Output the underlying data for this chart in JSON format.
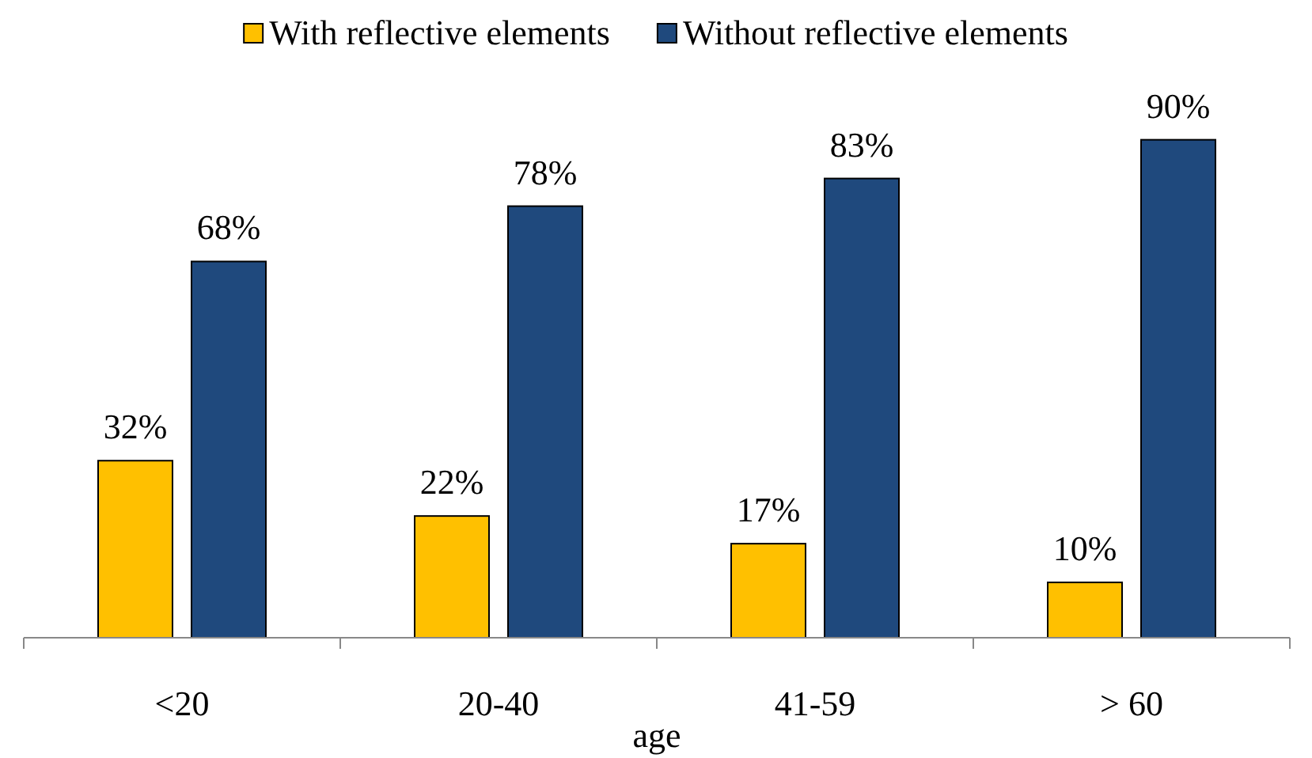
{
  "chart_data": {
    "type": "bar",
    "xlabel": "age",
    "categories": [
      "<20",
      "20-40",
      "41-59",
      "> 60"
    ],
    "series": [
      {
        "name": "With reflective elements",
        "color": "#ffc000",
        "values": [
          32,
          22,
          17,
          10
        ],
        "value_labels": [
          "32%",
          "22%",
          "17%",
          "10%"
        ]
      },
      {
        "name": "Without reflective elements",
        "color": "#1f497d",
        "values": [
          68,
          78,
          83,
          90
        ],
        "value_labels": [
          "68%",
          "78%",
          "83%",
          "90%"
        ]
      }
    ],
    "legend": "top"
  }
}
